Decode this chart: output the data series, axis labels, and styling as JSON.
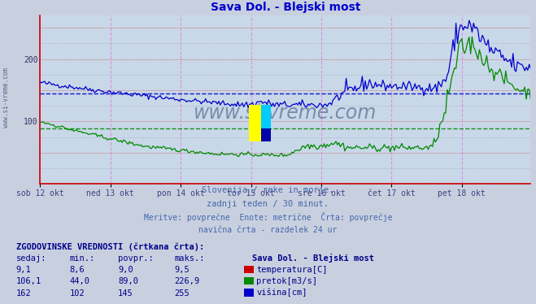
{
  "title": "Sava Dol. - Blejski most",
  "title_color": "#0000cc",
  "bg_color": "#c8d0e0",
  "plot_bg_color": "#c8d8e8",
  "x_labels": [
    "sob 12 okt",
    "ned 13 okt",
    "pon 14 okt",
    "tor 15 okt",
    "sre 16 okt",
    "čet 17 okt",
    "pet 18 okt"
  ],
  "x_label_color": "#404080",
  "ylim": [
    0,
    270
  ],
  "yticks": [
    100,
    200
  ],
  "grid_color_h": "#e08080",
  "grid_color_v": "#e080e0",
  "dot_grid_color": "#9090b0",
  "avg_blue_color": "#0000cc",
  "avg_green_color": "#008800",
  "line_blue_color": "#0000cc",
  "line_green_color": "#008800",
  "watermark_color": "#1a3060",
  "legend_title": "Sava Dol. - Blejski most",
  "legend_items": [
    {
      "label": "temperatura[C]",
      "color": "#cc0000"
    },
    {
      "label": "pretok[m3/s]",
      "color": "#008800"
    },
    {
      "label": "višina[cm]",
      "color": "#0000cc"
    }
  ],
  "table_header": "ZGODOVINSKE VREDNOSTI (črtkana črta):",
  "table_cols": [
    "sedaj:",
    "min.:",
    "povpr.:",
    "maks.:"
  ],
  "table_data": [
    [
      "9,1",
      "8,6",
      "9,0",
      "9,5"
    ],
    [
      "106,1",
      "44,0",
      "89,0",
      "226,9"
    ],
    [
      "162",
      "102",
      "145",
      "255"
    ]
  ],
  "avg_blue_val": 145,
  "avg_green_val": 89,
  "num_points": 336,
  "days": 7
}
